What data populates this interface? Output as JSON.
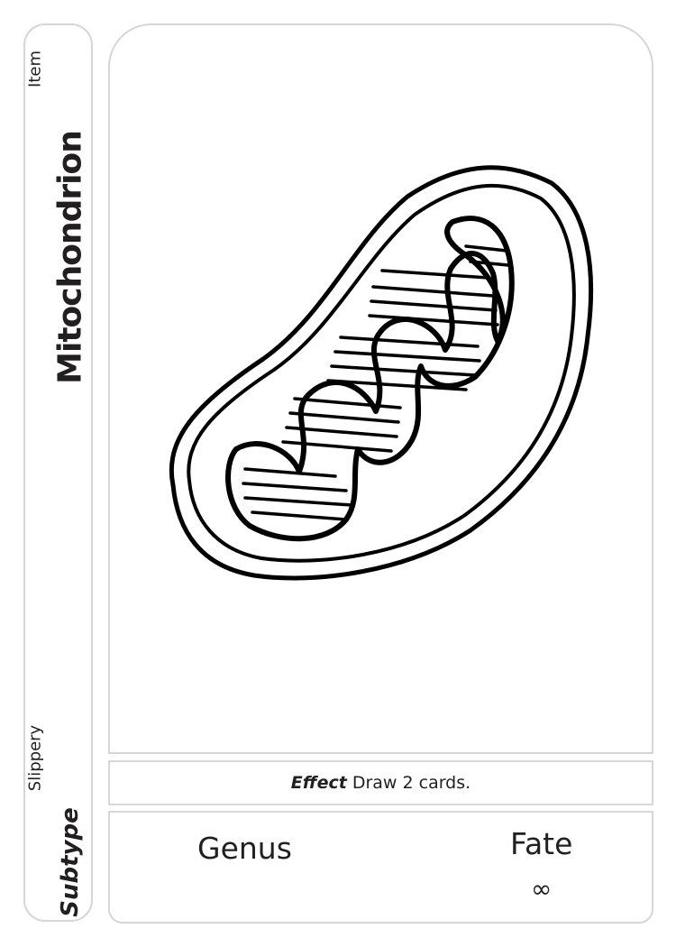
{
  "card": {
    "title": "Mitochondrion",
    "type": "Item",
    "subtype_label": "Subtype",
    "subtype_value": "Slippery",
    "effect_label": "Effect",
    "effect_text": "Draw 2 cards.",
    "genus_label": "Genus",
    "fate_label": "Fate",
    "fate_value": "∞",
    "illustration": "mitochondrion-illustration"
  },
  "colors": {
    "border": "#d6d6d6",
    "ink": "#231f20",
    "line_art": "#000000"
  }
}
